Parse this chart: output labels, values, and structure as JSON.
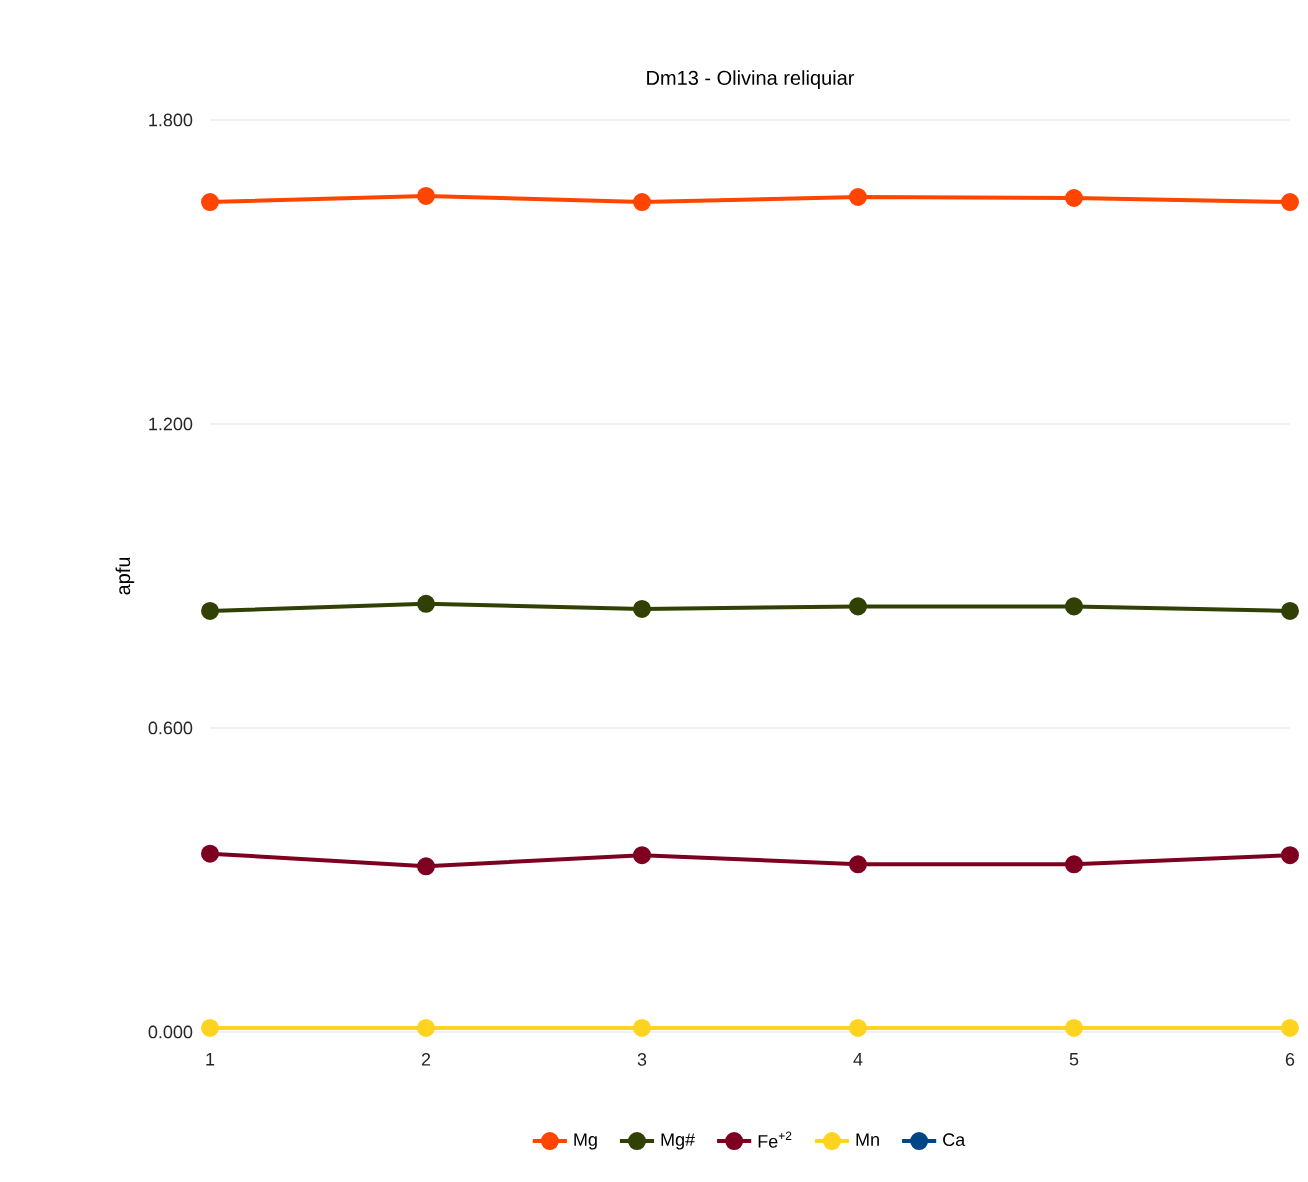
{
  "chart_data": {
    "type": "line",
    "title": "Dm13 - Olivina reliquiar",
    "ylabel": "apfu",
    "categories": [
      "1",
      "2",
      "3",
      "4",
      "5",
      "6"
    ],
    "series": [
      {
        "name": "Mg",
        "color": "#ff4500",
        "values": [
          1.638,
          1.65,
          1.638,
          1.648,
          1.646,
          1.638
        ]
      },
      {
        "name": "Mg#",
        "color": "#314004",
        "values": [
          0.831,
          0.845,
          0.835,
          0.84,
          0.84,
          0.831
        ]
      },
      {
        "name": "Fe$^{+2}$",
        "color": "#7e0021",
        "values": [
          0.352,
          0.327,
          0.349,
          0.331,
          0.331,
          0.349
        ]
      },
      {
        "name": "Mn",
        "color": "#ffd320",
        "values": [
          0.008,
          0.008,
          0.008,
          0.008,
          0.008,
          0.008
        ]
      },
      {
        "name": "Ca",
        "color": "#004586",
        "values": [
          null,
          null,
          null,
          null,
          null,
          null
        ]
      }
    ],
    "ylim": [
      0,
      1.8
    ],
    "yticks": [
      {
        "value": 0,
        "label": "0.000"
      },
      {
        "value": 0.6,
        "label": "0.600"
      },
      {
        "value": 1.2,
        "label": "1.200"
      },
      {
        "value": 1.8,
        "label": "1.800"
      }
    ],
    "grid": "y",
    "legend": "bottom",
    "marker": "circle",
    "line_style": "solid"
  }
}
